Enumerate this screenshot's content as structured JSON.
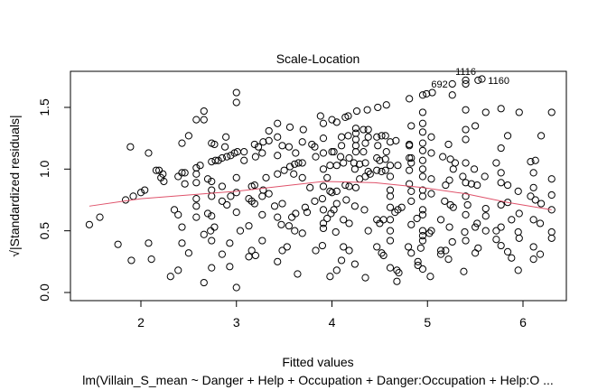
{
  "chart_data": {
    "type": "scatter",
    "title": "Scale-Location",
    "xlabel": "Fitted values",
    "ylabel": "√|Standardized residuals|",
    "subtitle": "lm(Villain_S_mean ~ Danger + Help + Occupation + Danger:Occupation + Help:O ...",
    "xlim": [
      1.26,
      6.48
    ],
    "ylim": [
      0,
      1.8
    ],
    "x_ticks": [
      "2",
      "3",
      "4",
      "5",
      "6"
    ],
    "y_ticks": [
      "0.0",
      "0.5",
      "1.0",
      "1.5"
    ],
    "grid": false,
    "smoother_color": "#DF536B",
    "smoother": [
      [
        1.46,
        0.7
      ],
      [
        2.0,
        0.76
      ],
      [
        3.0,
        0.82
      ],
      [
        3.91,
        0.9
      ],
      [
        4.45,
        0.89
      ],
      [
        4.95,
        0.85
      ],
      [
        5.4,
        0.8
      ],
      [
        5.84,
        0.73
      ],
      [
        6.3,
        0.67
      ]
    ],
    "labeled_points": [
      {
        "label": "692",
        "x": 5.26,
        "y": 1.69
      },
      {
        "label": "1116",
        "x": 5.4,
        "y": 1.72
      },
      {
        "label": "1160",
        "x": 5.53,
        "y": 1.72
      }
    ],
    "points": [
      [
        1.46,
        0.55
      ],
      [
        1.57,
        0.61
      ],
      [
        1.76,
        0.39
      ],
      [
        1.9,
        0.26
      ],
      [
        1.89,
        1.18
      ],
      [
        2.08,
        1.13
      ],
      [
        1.84,
        0.75
      ],
      [
        1.92,
        0.78
      ],
      [
        2.0,
        0.81
      ],
      [
        2.04,
        0.83
      ],
      [
        2.08,
        0.4
      ],
      [
        2.11,
        0.27
      ],
      [
        2.16,
        0.99
      ],
      [
        2.19,
        0.99
      ],
      [
        2.23,
        0.96
      ],
      [
        2.24,
        0.9
      ],
      [
        2.21,
        0.93
      ],
      [
        2.35,
        0.67
      ],
      [
        2.39,
        0.63
      ],
      [
        2.43,
        0.53
      ],
      [
        2.43,
        0.4
      ],
      [
        2.5,
        0.32
      ],
      [
        2.39,
        0.18
      ],
      [
        2.31,
        0.13
      ],
      [
        2.39,
        0.94
      ],
      [
        2.43,
        0.97
      ],
      [
        2.46,
        0.97
      ],
      [
        2.46,
        0.88
      ],
      [
        2.43,
        1.21
      ],
      [
        2.5,
        1.27
      ],
      [
        2.58,
        1.4
      ],
      [
        2.66,
        1.47
      ],
      [
        2.66,
        1.4
      ],
      [
        2.58,
        1.01
      ],
      [
        2.62,
        1.03
      ],
      [
        2.58,
        0.96
      ],
      [
        2.58,
        0.89
      ],
      [
        2.58,
        0.76
      ],
      [
        2.58,
        0.7
      ],
      [
        2.58,
        0.61
      ],
      [
        2.66,
        0.47
      ],
      [
        2.66,
        0.08
      ],
      [
        2.7,
        0.92
      ],
      [
        2.74,
        0.9
      ],
      [
        2.74,
        0.83
      ],
      [
        2.74,
        0.78
      ],
      [
        2.7,
        0.64
      ],
      [
        2.74,
        0.62
      ],
      [
        2.73,
        0.5
      ],
      [
        2.77,
        0.53
      ],
      [
        2.74,
        0.42
      ],
      [
        2.74,
        0.2
      ],
      [
        2.74,
        1.21
      ],
      [
        2.77,
        1.2
      ],
      [
        2.74,
        1.06
      ],
      [
        2.78,
        1.07
      ],
      [
        2.81,
        1.07
      ],
      [
        2.85,
        1.09
      ],
      [
        2.9,
        1.1
      ],
      [
        2.94,
        1.11
      ],
      [
        2.98,
        1.13
      ],
      [
        3.01,
        1.14
      ],
      [
        2.89,
        1.26
      ],
      [
        2.88,
        1.18
      ],
      [
        2.85,
        0.86
      ],
      [
        2.85,
        0.74
      ],
      [
        2.9,
        0.71
      ],
      [
        2.94,
        0.78
      ],
      [
        3.0,
        0.81
      ],
      [
        3.0,
        0.93
      ],
      [
        3.0,
        0.65
      ],
      [
        3.0,
        1.62
      ],
      [
        3.0,
        1.54
      ],
      [
        2.85,
        0.31
      ],
      [
        2.93,
        0.21
      ],
      [
        2.93,
        0.4
      ],
      [
        3.0,
        0.04
      ],
      [
        3.04,
        0.5
      ],
      [
        3.13,
        0.54
      ],
      [
        3.08,
        1.14
      ],
      [
        3.08,
        1.07
      ],
      [
        3.13,
        0.76
      ],
      [
        3.16,
        0.74
      ],
      [
        3.19,
        0.72
      ],
      [
        3.16,
        0.86
      ],
      [
        3.19,
        0.87
      ],
      [
        3.28,
        0.83
      ],
      [
        3.27,
        0.78
      ],
      [
        3.34,
        0.8
      ],
      [
        3.31,
        0.93
      ],
      [
        3.27,
        0.63
      ],
      [
        3.27,
        0.42
      ],
      [
        3.16,
        0.34
      ],
      [
        3.13,
        0.29
      ],
      [
        3.2,
        0.3
      ],
      [
        3.43,
        0.25
      ],
      [
        3.19,
        1.2
      ],
      [
        3.23,
        1.18
      ],
      [
        3.27,
        1.13
      ],
      [
        3.2,
        1.1
      ],
      [
        3.28,
        1.22
      ],
      [
        3.34,
        1.23
      ],
      [
        3.34,
        1.31
      ],
      [
        3.43,
        1.37
      ],
      [
        3.43,
        1.26
      ],
      [
        3.43,
        1.11
      ],
      [
        3.43,
        0.96
      ],
      [
        3.4,
        0.7
      ],
      [
        3.43,
        0.61
      ],
      [
        3.47,
        0.55
      ],
      [
        3.48,
        0.72
      ],
      [
        3.5,
        0.99
      ],
      [
        3.48,
        1.19
      ],
      [
        3.55,
        1.18
      ],
      [
        3.62,
        1.13
      ],
      [
        3.56,
        1.34
      ],
      [
        3.55,
        0.54
      ],
      [
        3.61,
        0.5
      ],
      [
        3.62,
        0.64
      ],
      [
        3.58,
        0.61
      ],
      [
        3.48,
        0.34
      ],
      [
        3.53,
        0.37
      ],
      [
        3.64,
        0.15
      ],
      [
        3.56,
        1.02
      ],
      [
        3.61,
        1.04
      ],
      [
        3.65,
        1.05
      ],
      [
        3.69,
        1.05
      ],
      [
        3.6,
        0.96
      ],
      [
        3.69,
        0.93
      ],
      [
        3.69,
        1.22
      ],
      [
        3.7,
        1.32
      ],
      [
        3.79,
        1.2
      ],
      [
        3.82,
        1.18
      ],
      [
        3.72,
        0.69
      ],
      [
        3.74,
        0.65
      ],
      [
        3.69,
        0.48
      ],
      [
        3.77,
        0.85
      ],
      [
        3.82,
        0.74
      ],
      [
        3.83,
        0.34
      ],
      [
        3.83,
        1.1
      ],
      [
        3.88,
        1.43
      ],
      [
        3.91,
        1.37
      ],
      [
        3.91,
        1.25
      ],
      [
        3.91,
        1.13
      ],
      [
        3.91,
        1.0
      ],
      [
        3.91,
        0.86
      ],
      [
        3.9,
        0.76
      ],
      [
        3.91,
        0.67
      ],
      [
        3.91,
        0.56
      ],
      [
        3.91,
        0.52
      ],
      [
        3.9,
        0.38
      ],
      [
        3.98,
        0.13
      ],
      [
        4.05,
        0.18
      ],
      [
        4.0,
        1.4
      ],
      [
        4.05,
        1.38
      ],
      [
        4.17,
        1.43
      ],
      [
        4.26,
        1.47
      ],
      [
        4.37,
        1.48
      ],
      [
        4.48,
        1.5
      ],
      [
        4.57,
        1.52
      ],
      [
        4.81,
        1.57
      ],
      [
        4.95,
        1.6
      ],
      [
        4.99,
        1.61
      ],
      [
        5.05,
        1.62
      ],
      [
        5.26,
        1.6
      ],
      [
        5.26,
        1.69
      ],
      [
        5.4,
        1.69
      ],
      [
        5.4,
        1.72
      ],
      [
        5.53,
        1.72
      ],
      [
        5.57,
        1.73
      ],
      [
        5.4,
        1.48
      ],
      [
        5.61,
        1.46
      ],
      [
        5.77,
        1.49
      ],
      [
        5.96,
        1.46
      ],
      [
        6.3,
        1.46
      ],
      [
        5.84,
        1.27
      ],
      [
        6.19,
        1.27
      ],
      [
        5.4,
        1.32
      ],
      [
        5.4,
        1.24
      ],
      [
        5.5,
        1.35
      ],
      [
        4.95,
        1.46
      ],
      [
        4.95,
        1.37
      ],
      [
        4.95,
        1.3
      ],
      [
        4.83,
        1.35
      ],
      [
        5.04,
        1.26
      ],
      [
        4.95,
        1.21
      ],
      [
        4.81,
        1.19
      ],
      [
        4.95,
        1.15
      ],
      [
        4.83,
        1.09
      ],
      [
        4.95,
        1.07
      ],
      [
        5.04,
        1.13
      ],
      [
        5.22,
        1.2
      ],
      [
        5.16,
        1.1
      ],
      [
        5.24,
        1.08
      ],
      [
        5.29,
        1.05
      ],
      [
        5.4,
        1.05
      ],
      [
        5.49,
        1.0
      ],
      [
        5.6,
        0.94
      ],
      [
        5.77,
        1.17
      ],
      [
        5.72,
        1.05
      ],
      [
        6.08,
        1.06
      ],
      [
        6.13,
        1.07
      ],
      [
        6.11,
        0.97
      ],
      [
        6.3,
        0.92
      ],
      [
        6.3,
        0.79
      ],
      [
        6.3,
        0.67
      ],
      [
        6.3,
        0.49
      ],
      [
        6.3,
        0.44
      ],
      [
        5.77,
        0.97
      ],
      [
        5.77,
        0.89
      ],
      [
        5.84,
        0.87
      ],
      [
        5.95,
        0.82
      ],
      [
        6.08,
        0.78
      ],
      [
        6.11,
        0.85
      ],
      [
        6.13,
        0.75
      ],
      [
        6.19,
        0.72
      ],
      [
        5.84,
        0.73
      ],
      [
        5.77,
        0.71
      ],
      [
        5.96,
        0.64
      ],
      [
        5.88,
        0.59
      ],
      [
        5.77,
        0.53
      ],
      [
        5.72,
        0.5
      ],
      [
        5.95,
        0.49
      ],
      [
        5.96,
        0.44
      ],
      [
        6.11,
        0.59
      ],
      [
        6.18,
        0.56
      ],
      [
        5.72,
        0.43
      ],
      [
        5.77,
        0.38
      ],
      [
        5.84,
        0.33
      ],
      [
        5.88,
        0.28
      ],
      [
        6.11,
        0.37
      ],
      [
        6.18,
        0.31
      ],
      [
        6.11,
        0.27
      ],
      [
        5.95,
        0.18
      ],
      [
        5.61,
        0.68
      ],
      [
        5.61,
        0.62
      ],
      [
        5.61,
        0.5
      ],
      [
        5.52,
        0.56
      ],
      [
        5.5,
        0.53
      ],
      [
        5.53,
        0.36
      ],
      [
        5.5,
        0.32
      ],
      [
        5.39,
        0.49
      ],
      [
        5.4,
        0.42
      ],
      [
        5.38,
        0.17
      ],
      [
        5.26,
        0.41
      ],
      [
        5.22,
        0.27
      ],
      [
        5.14,
        0.34
      ],
      [
        5.19,
        0.34
      ],
      [
        5.14,
        0.31
      ],
      [
        5.14,
        0.59
      ],
      [
        5.23,
        0.53
      ],
      [
        5.18,
        0.74
      ],
      [
        5.24,
        0.71
      ],
      [
        5.27,
        0.69
      ],
      [
        5.42,
        0.71
      ],
      [
        5.4,
        0.78
      ],
      [
        5.4,
        0.63
      ],
      [
        5.37,
        0.94
      ],
      [
        5.4,
        0.89
      ],
      [
        5.46,
        0.88
      ],
      [
        5.52,
        0.87
      ],
      [
        5.19,
        0.87
      ],
      [
        5.23,
        0.91
      ],
      [
        5.27,
        1.0
      ],
      [
        4.95,
        1.0
      ],
      [
        4.95,
        0.94
      ],
      [
        4.95,
        0.83
      ],
      [
        4.95,
        0.78
      ],
      [
        4.95,
        0.67
      ],
      [
        4.95,
        0.63
      ],
      [
        4.95,
        0.5
      ],
      [
        4.95,
        0.46
      ],
      [
        4.95,
        0.42
      ],
      [
        4.9,
        0.22
      ],
      [
        4.95,
        0.19
      ],
      [
        5.03,
        0.13
      ],
      [
        4.83,
        1.05
      ],
      [
        4.81,
        0.99
      ],
      [
        4.81,
        0.88
      ],
      [
        4.83,
        0.82
      ],
      [
        4.83,
        0.74
      ],
      [
        4.83,
        0.55
      ],
      [
        4.89,
        0.6
      ],
      [
        4.8,
        0.37
      ],
      [
        4.83,
        0.32
      ],
      [
        5.04,
        0.92
      ],
      [
        5.04,
        0.8
      ],
      [
        5.04,
        0.5
      ],
      [
        5.02,
        0.48
      ],
      [
        4.93,
        0.36
      ],
      [
        4.9,
        0.25
      ],
      [
        4.68,
        0.18
      ],
      [
        4.7,
        0.16
      ],
      [
        4.68,
        0.09
      ],
      [
        4.61,
        0.42
      ],
      [
        4.61,
        0.5
      ],
      [
        4.61,
        0.59
      ],
      [
        4.66,
        0.65
      ],
      [
        4.69,
        0.67
      ],
      [
        4.73,
        0.69
      ],
      [
        4.61,
        0.69
      ],
      [
        4.61,
        0.78
      ],
      [
        4.61,
        0.83
      ],
      [
        4.61,
        0.94
      ],
      [
        4.56,
        0.99
      ],
      [
        4.52,
        0.98
      ],
      [
        4.47,
        0.99
      ],
      [
        4.4,
        0.96
      ],
      [
        4.35,
        0.94
      ],
      [
        4.29,
        0.92
      ],
      [
        4.25,
        0.85
      ],
      [
        4.18,
        0.86
      ],
      [
        4.14,
        0.87
      ],
      [
        4.05,
        0.82
      ],
      [
        4.0,
        0.81
      ],
      [
        3.98,
        0.82
      ],
      [
        3.95,
        0.93
      ],
      [
        3.98,
        1.03
      ],
      [
        4.05,
        1.03
      ],
      [
        4.12,
        1.05
      ],
      [
        4.18,
        1.09
      ],
      [
        4.24,
        1.0
      ],
      [
        4.23,
        1.05
      ],
      [
        4.29,
        1.04
      ],
      [
        4.35,
        1.05
      ],
      [
        4.38,
        0.98
      ],
      [
        4.47,
        1.09
      ],
      [
        4.5,
        1.07
      ],
      [
        4.56,
        1.08
      ],
      [
        4.61,
        1.03
      ],
      [
        4.69,
        1.03
      ],
      [
        4.57,
        1.14
      ],
      [
        4.61,
        1.22
      ],
      [
        4.67,
        1.23
      ],
      [
        4.56,
        1.27
      ],
      [
        4.52,
        1.27
      ],
      [
        4.47,
        1.26
      ],
      [
        4.48,
        1.19
      ],
      [
        4.38,
        1.26
      ],
      [
        4.38,
        1.32
      ],
      [
        4.33,
        1.32
      ],
      [
        4.25,
        1.33
      ],
      [
        4.25,
        1.29
      ],
      [
        4.25,
        1.24
      ],
      [
        4.25,
        1.19
      ],
      [
        4.25,
        1.14
      ],
      [
        4.33,
        1.14
      ],
      [
        4.35,
        1.21
      ],
      [
        4.17,
        1.27
      ],
      [
        4.1,
        1.26
      ],
      [
        4.1,
        1.19
      ],
      [
        4.02,
        1.14
      ],
      [
        4.0,
        1.14
      ],
      [
        4.09,
        1.1
      ],
      [
        4.14,
        1.42
      ],
      [
        4.05,
        0.72
      ],
      [
        4.02,
        0.67
      ],
      [
        3.99,
        0.64
      ],
      [
        3.95,
        0.6
      ],
      [
        4.12,
        0.59
      ],
      [
        4.18,
        0.56
      ],
      [
        4.04,
        0.49
      ],
      [
        4.15,
        0.75
      ],
      [
        4.24,
        0.7
      ],
      [
        4.34,
        0.67
      ],
      [
        4.38,
        0.5
      ],
      [
        4.47,
        0.59
      ],
      [
        4.5,
        0.56
      ],
      [
        4.54,
        0.59
      ],
      [
        4.47,
        0.37
      ],
      [
        4.52,
        0.32
      ],
      [
        4.54,
        0.3
      ],
      [
        4.61,
        0.2
      ],
      [
        4.12,
        0.37
      ],
      [
        4.18,
        0.34
      ],
      [
        4.1,
        0.26
      ],
      [
        4.24,
        0.23
      ],
      [
        4.35,
        0.12
      ],
      [
        4.81,
        1.2
      ],
      [
        4.81,
        1.09
      ]
    ]
  }
}
